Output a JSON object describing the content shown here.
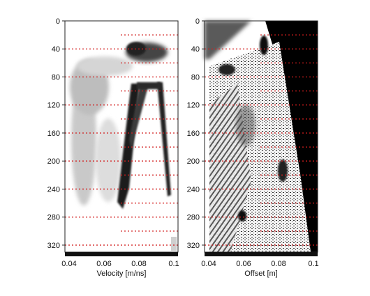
{
  "panels": [
    {
      "id": "velocity",
      "xlabel": "Velocity [m/ns]",
      "xticks": [
        "0.04",
        "0.06",
        "0.08",
        "0.1"
      ],
      "yticks": [
        "0",
        "40",
        "80",
        "120",
        "160",
        "200",
        "240",
        "280",
        "320"
      ]
    },
    {
      "id": "offset",
      "xlabel": "Offset [m]",
      "xticks": [
        "0.04",
        "0.06",
        "0.08",
        "0.1"
      ],
      "yticks": [
        "0",
        "40",
        "80",
        "120",
        "160",
        "200",
        "240",
        "280",
        "320"
      ]
    }
  ],
  "guide_line_color": "#d21e1e"
}
